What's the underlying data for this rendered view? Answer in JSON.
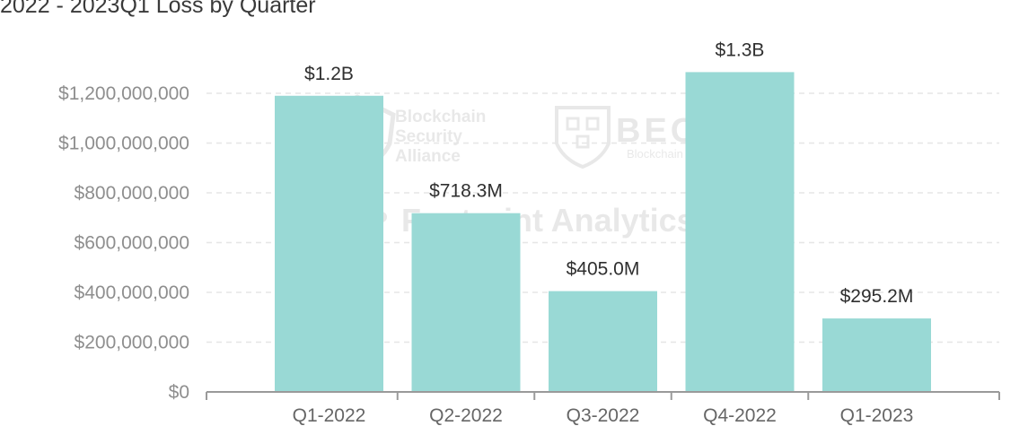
{
  "title": "2022 - 2023Q1 Loss by Quarter",
  "watermarks": {
    "bsa_line1": "Blockchain",
    "bsa_line2": "Security",
    "bsa_line3": "Alliance",
    "beosin": "BEOSIN",
    "beosin_sub": "Blockchain Security",
    "footprint": "Footprint Analytics"
  },
  "colors": {
    "bar": "#99d9d5",
    "grid": "#e6e6e6",
    "axis": "#9a9a9a"
  },
  "chart_data": {
    "type": "bar",
    "categories": [
      "Q1-2022",
      "Q2-2022",
      "Q3-2022",
      "Q4-2022",
      "Q1-2023"
    ],
    "values": [
      1190000000,
      718300000,
      405000000,
      1285000000,
      295200000
    ],
    "data_labels": [
      "$1.2B",
      "$718.3M",
      "$405.0M",
      "$1.3B",
      "$295.2M"
    ],
    "yticks": [
      0,
      200000000,
      400000000,
      600000000,
      800000000,
      1000000000,
      1200000000
    ],
    "ytick_labels": [
      "$0",
      "$200,000,000",
      "$400,000,000",
      "$600,000,000",
      "$800,000,000",
      "$1,000,000,000",
      "$1,200,000,000"
    ],
    "ylim": [
      0,
      1300000000
    ],
    "grid": true
  }
}
